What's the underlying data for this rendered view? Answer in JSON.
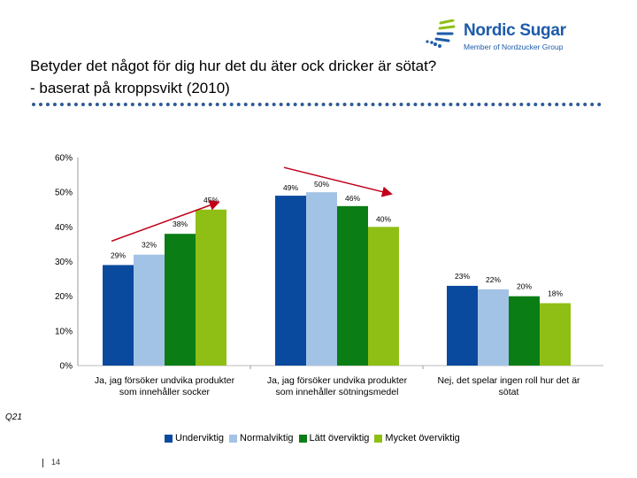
{
  "logo": {
    "name": "Nordic Sugar",
    "tagline": "Member of Nordzucker Group",
    "color": "#1d5ba8"
  },
  "title": {
    "line1": "Betyder det något för dig hur det du äter ock dricker är sötat?",
    "line2": "- baserat på kroppsvikt (2010)"
  },
  "footnote": "Q21",
  "page_number": "14",
  "chart_data": {
    "type": "bar",
    "title": "",
    "xlabel": "",
    "ylabel": "",
    "ylim": [
      0,
      60
    ],
    "yticks": [
      "0%",
      "10%",
      "20%",
      "30%",
      "40%",
      "50%",
      "60%"
    ],
    "categories": [
      [
        "Ja, jag försöker undvika produkter",
        "som innehåller socker"
      ],
      [
        "Ja, jag försöker undvika produkter",
        "som innehåller sötningsmedel"
      ],
      [
        "Nej, det spelar ingen roll hur det är",
        "sötat"
      ]
    ],
    "series": [
      {
        "name": "Underviktig",
        "color": "#0a4a9e",
        "values": [
          29,
          49,
          23
        ],
        "labels": [
          "29%",
          "49%",
          "23%"
        ]
      },
      {
        "name": "Normalviktig",
        "color": "#a3c3e6",
        "values": [
          32,
          50,
          22
        ],
        "labels": [
          "32%",
          "50%",
          "22%"
        ]
      },
      {
        "name": "Lätt överviktig",
        "color": "#0a7d14",
        "values": [
          38,
          46,
          20
        ],
        "labels": [
          "38%",
          "46%",
          "20%"
        ]
      },
      {
        "name": "Mycket överviktig",
        "color": "#8fbf14",
        "values": [
          45,
          40,
          18
        ],
        "labels": [
          "45%",
          "40%",
          "18%"
        ]
      }
    ],
    "annotations": [
      {
        "kind": "arrow",
        "direction": "up",
        "group": 0
      },
      {
        "kind": "arrow",
        "direction": "down",
        "group": 1
      }
    ],
    "legend": "bottom"
  }
}
